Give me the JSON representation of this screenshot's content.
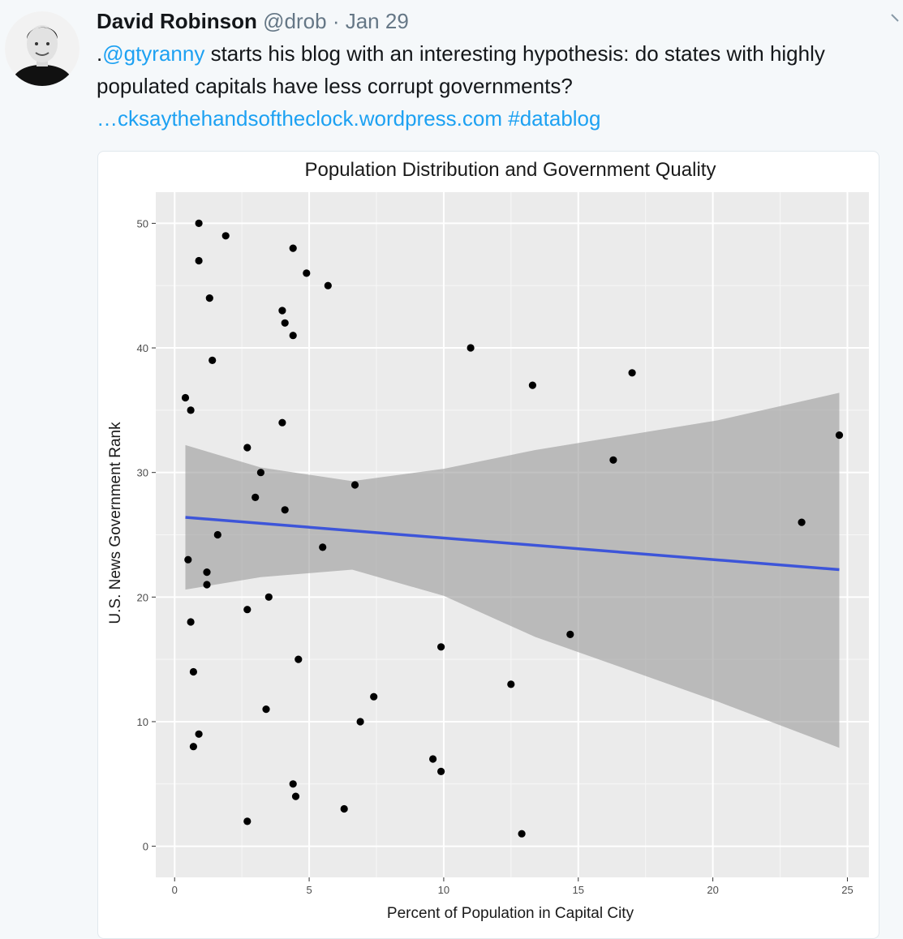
{
  "tweet": {
    "author_name": "David Robinson",
    "author_handle": "@drob",
    "separator": "·",
    "date": "Jan 29",
    "text_prefix": ".",
    "mention": "@gtyranny",
    "text_body": " starts his blog with an interesting hypothesis: do states with highly populated capitals have less corrupt governments?",
    "link": "…cksaythehandsoftheclock.wordpress.com",
    "hashtag": "#datablog"
  },
  "colors": {
    "link": "#1da1f2",
    "panel_background": "#ebebeb",
    "ribbon": "#999999",
    "trend_line": "#3d55d9",
    "points": "#000000"
  },
  "icons": [
    "avatar-photo",
    "chevron-down-icon"
  ],
  "chart_data": {
    "type": "scatter",
    "title": "Population Distribution and Government Quality",
    "xlabel": "Percent of Population in Capital City",
    "ylabel": "U.S. News Government Rank",
    "xlim": [
      -0.7,
      25.8
    ],
    "ylim": [
      -2.5,
      52.5
    ],
    "xticks": [
      0,
      5,
      10,
      15,
      20,
      25
    ],
    "yticks": [
      0,
      10,
      20,
      30,
      40,
      50
    ],
    "grid": true,
    "points": [
      {
        "x": 0.9,
        "y": 50
      },
      {
        "x": 1.9,
        "y": 49
      },
      {
        "x": 4.4,
        "y": 48
      },
      {
        "x": 0.9,
        "y": 47
      },
      {
        "x": 4.9,
        "y": 46
      },
      {
        "x": 5.7,
        "y": 45
      },
      {
        "x": 1.3,
        "y": 44
      },
      {
        "x": 4.0,
        "y": 43
      },
      {
        "x": 4.1,
        "y": 42
      },
      {
        "x": 4.4,
        "y": 41
      },
      {
        "x": 11.0,
        "y": 40
      },
      {
        "x": 1.4,
        "y": 39
      },
      {
        "x": 17.0,
        "y": 38
      },
      {
        "x": 13.3,
        "y": 37
      },
      {
        "x": 0.4,
        "y": 36
      },
      {
        "x": 0.6,
        "y": 35
      },
      {
        "x": 4.0,
        "y": 34
      },
      {
        "x": 24.7,
        "y": 33
      },
      {
        "x": 2.7,
        "y": 32
      },
      {
        "x": 16.3,
        "y": 31
      },
      {
        "x": 3.2,
        "y": 30
      },
      {
        "x": 6.7,
        "y": 29
      },
      {
        "x": 3.0,
        "y": 28
      },
      {
        "x": 4.1,
        "y": 27
      },
      {
        "x": 23.3,
        "y": 26
      },
      {
        "x": 1.6,
        "y": 25
      },
      {
        "x": 5.5,
        "y": 24
      },
      {
        "x": 0.5,
        "y": 23
      },
      {
        "x": 1.2,
        "y": 22
      },
      {
        "x": 1.2,
        "y": 21
      },
      {
        "x": 3.5,
        "y": 20
      },
      {
        "x": 2.7,
        "y": 19
      },
      {
        "x": 0.6,
        "y": 18
      },
      {
        "x": 14.7,
        "y": 17
      },
      {
        "x": 9.9,
        "y": 16
      },
      {
        "x": 4.6,
        "y": 15
      },
      {
        "x": 0.7,
        "y": 14
      },
      {
        "x": 12.5,
        "y": 13
      },
      {
        "x": 7.4,
        "y": 12
      },
      {
        "x": 3.4,
        "y": 11
      },
      {
        "x": 6.9,
        "y": 10
      },
      {
        "x": 0.9,
        "y": 9
      },
      {
        "x": 0.7,
        "y": 8
      },
      {
        "x": 9.6,
        "y": 7
      },
      {
        "x": 9.9,
        "y": 6
      },
      {
        "x": 4.4,
        "y": 5
      },
      {
        "x": 4.5,
        "y": 4
      },
      {
        "x": 6.3,
        "y": 3
      },
      {
        "x": 2.7,
        "y": 2
      },
      {
        "x": 12.9,
        "y": 1
      }
    ],
    "trend": {
      "x": [
        0.4,
        24.7
      ],
      "y": [
        26.4,
        22.2
      ]
    },
    "ribbon": {
      "x": [
        0.4,
        3.2,
        6.6,
        10.0,
        13.4,
        16.8,
        20.2,
        24.7
      ],
      "upper": [
        32.2,
        30.4,
        29.3,
        30.3,
        31.8,
        33.0,
        34.2,
        36.4
      ],
      "lower": [
        20.6,
        21.6,
        22.2,
        20.1,
        16.8,
        14.2,
        11.6,
        7.9
      ]
    }
  }
}
